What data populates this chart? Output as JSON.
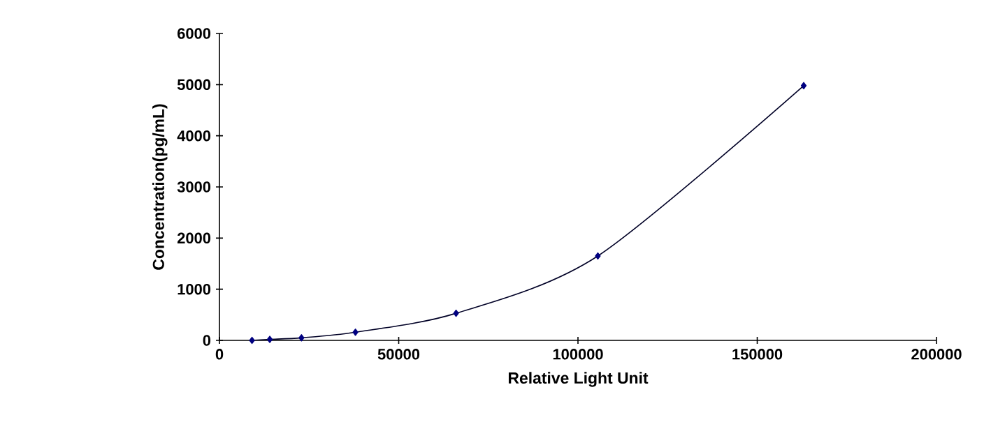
{
  "chart_data": {
    "type": "line",
    "xlabel": "Relative Light Unit",
    "ylabel": "Concentration(pg/mL)",
    "series": [
      {
        "color": "#000080",
        "x": [
          9080,
          14040,
          22880,
          37930,
          66000,
          105540,
          162960
        ],
        "values": [
          0,
          20,
          50,
          160,
          530,
          1650,
          4980
        ]
      }
    ],
    "xlim": [
      0,
      200000
    ],
    "ylim": [
      0,
      6000
    ],
    "xticks": [
      0,
      50000,
      100000,
      150000,
      200000
    ],
    "yticks": [
      0,
      1000,
      2000,
      3000,
      4000,
      5000,
      6000
    ],
    "grid": false,
    "marker": "diamond",
    "line_style": "solid"
  }
}
